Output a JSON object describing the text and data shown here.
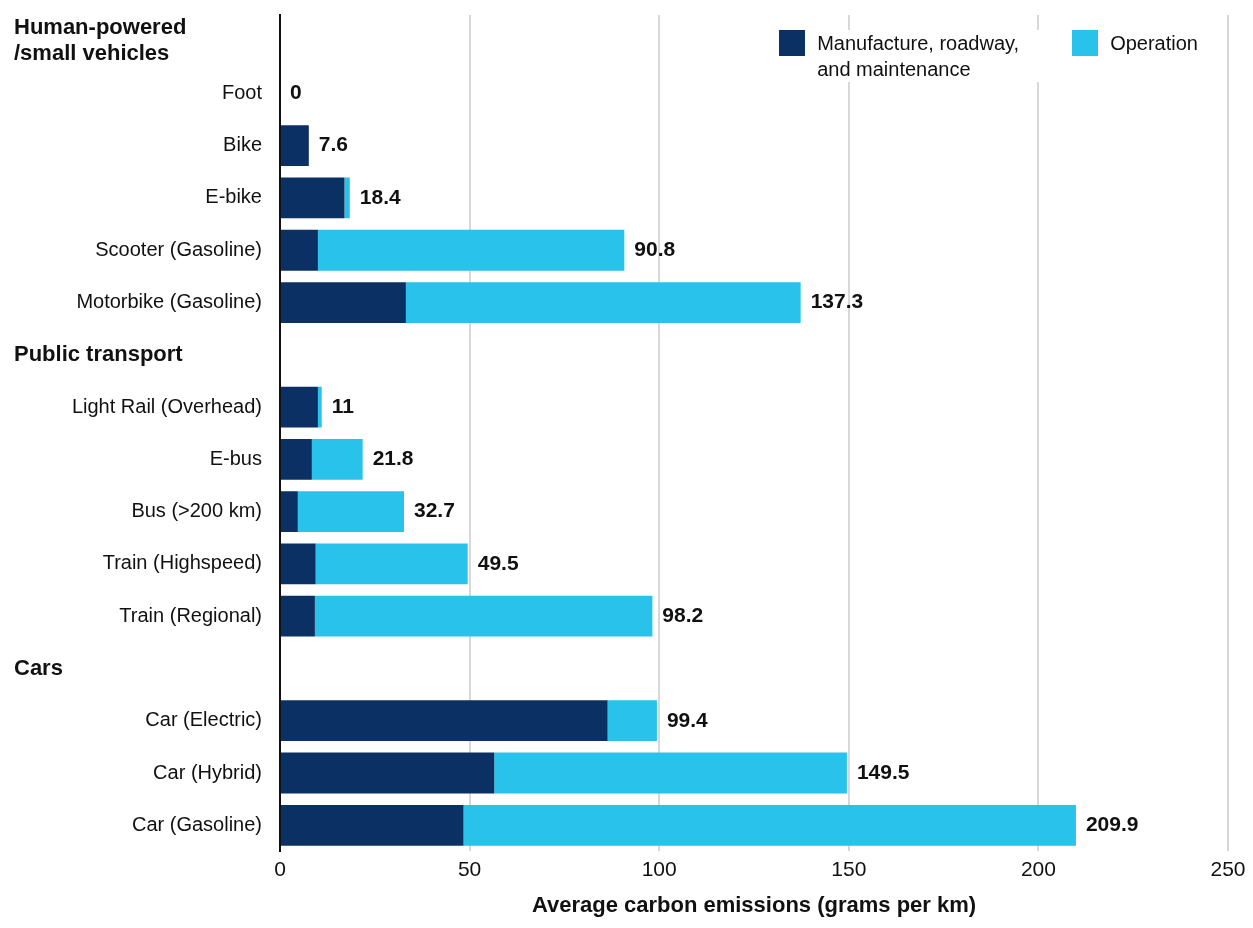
{
  "chart_data": {
    "type": "bar",
    "orientation": "horizontal",
    "stacked": true,
    "categories": [
      null,
      "Foot",
      "Bike",
      "E-bike",
      "Scooter (Gasoline)",
      "Motorbike (Gasoline)",
      null,
      "Light Rail (Overhead)",
      "E-bus",
      "Bus (>200 km)",
      "Train (Highspeed)",
      "Train (Regional)",
      null,
      "Car (Electric)",
      "Car (Hybrid)",
      "Car (Gasoline)"
    ],
    "annotations": [
      "Human-powered /small vehicles",
      "Public transport",
      "Cars"
    ],
    "series": [
      {
        "name": "Manufacture, roadway, and maintenance",
        "color": "#0a3064",
        "values": [
          null,
          0,
          7.6,
          17.0,
          10.0,
          33.2,
          null,
          10.0,
          8.4,
          4.7,
          9.4,
          9.2,
          null,
          86.4,
          56.5,
          48.4
        ]
      },
      {
        "name": "Operation",
        "color": "#29c2ea",
        "values": [
          null,
          0,
          0,
          1.4,
          80.8,
          104.1,
          null,
          1.0,
          13.4,
          28.0,
          40.1,
          89.0,
          null,
          13.0,
          93.0,
          161.5
        ]
      }
    ],
    "totals": [
      null,
      "0",
      "7.6",
      "18.4",
      "90.8",
      "137.3",
      null,
      "11",
      "21.8",
      "32.7",
      "49.5",
      "98.2",
      null,
      "99.4",
      "149.5",
      "209.9"
    ],
    "xlim": [
      0,
      250
    ],
    "xticks": [
      0,
      50,
      100,
      150,
      200,
      250
    ],
    "xlabel": "Average carbon emissions (grams per km)",
    "grid": "x",
    "legend": "top right"
  }
}
